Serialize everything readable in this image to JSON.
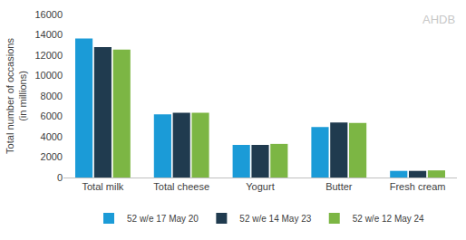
{
  "chart_data": {
    "type": "bar",
    "y_label": "Total number of occasions\n(in millions)",
    "categories": [
      "Total milk",
      "Total cheese",
      "Yogurt",
      "Butter",
      "Fresh cream"
    ],
    "series": [
      {
        "name": "52 w/e 17 May 20",
        "color": "#1b9bd7",
        "values": [
          13650,
          6200,
          3200,
          4950,
          650
        ]
      },
      {
        "name": "52 w/e 14 May 23",
        "color": "#203b4f",
        "values": [
          12800,
          6350,
          3200,
          5400,
          650
        ]
      },
      {
        "name": "52 w/e 12 May 24",
        "color": "#7cb644",
        "values": [
          12550,
          6350,
          3300,
          5350,
          700
        ]
      }
    ],
    "ylim": [
      0,
      16000
    ],
    "yticks": [
      0,
      2000,
      4000,
      6000,
      8000,
      10000,
      12000,
      14000,
      16000
    ],
    "grid": false,
    "legend": "bottom",
    "annotations": [
      {
        "text": "AHDB"
      }
    ]
  }
}
